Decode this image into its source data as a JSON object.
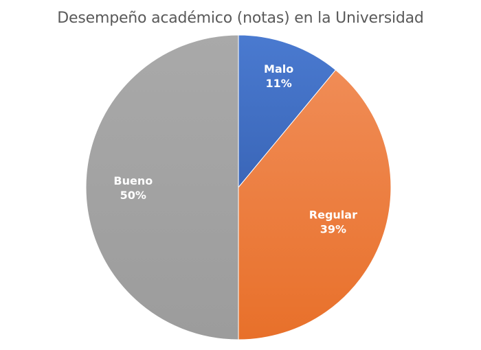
{
  "chart_data": {
    "type": "pie",
    "title": "Desempeño académico (notas) en la Universidad",
    "slices": [
      {
        "label": "Malo",
        "value": 11,
        "value_label": "11%",
        "color": "#4472c4"
      },
      {
        "label": "Regular",
        "value": 39,
        "value_label": "39%",
        "color": "#ed7d31"
      },
      {
        "label": "Bueno",
        "value": 50,
        "value_label": "50%",
        "color": "#a5a5a5"
      }
    ]
  }
}
